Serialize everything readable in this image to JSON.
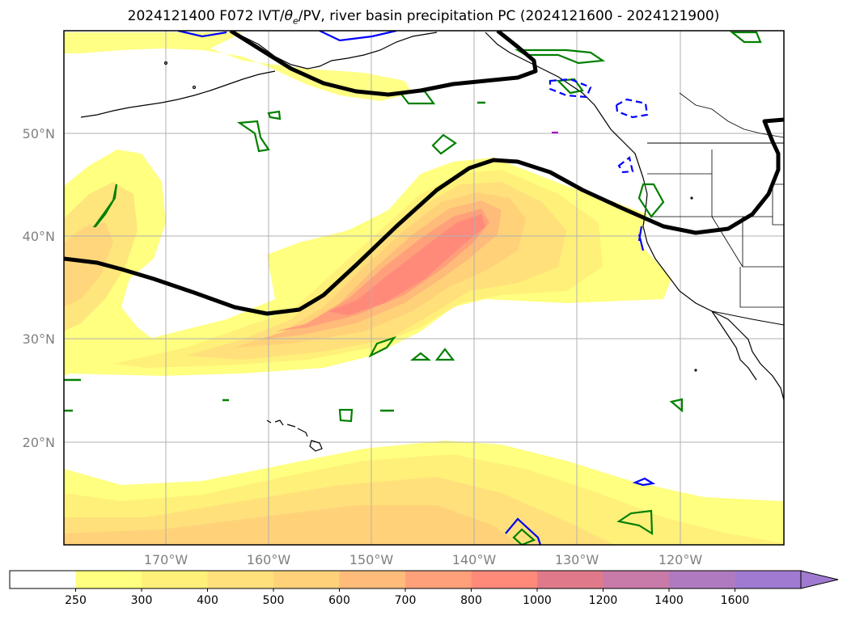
{
  "title": {
    "prefix": "2024121400 F072 IVT/",
    "theta_symbol": "θ",
    "theta_sub": "e",
    "suffix": "/PV, river basin precipitation PC (2024121600 - 2024121900)"
  },
  "map": {
    "lat_labels": [
      "50°N",
      "40°N",
      "30°N",
      "20°N"
    ],
    "lon_labels": [
      "170°W",
      "160°W",
      "150°W",
      "140°W",
      "130°W",
      "120°W"
    ],
    "grid": true
  },
  "colorbar": {
    "ticks": [
      "250",
      "300",
      "400",
      "500",
      "600",
      "700",
      "800",
      "1000",
      "1200",
      "1400",
      "1600"
    ],
    "colors": [
      "#ffffff",
      "#ffff80",
      "#fff07a",
      "#ffe07a",
      "#ffd27a",
      "#ffbb7a",
      "#ffa07a",
      "#ff8a7a",
      "#e07a8a",
      "#c87aa8",
      "#b07ac0",
      "#a07ad0"
    ],
    "extend": "max"
  }
}
